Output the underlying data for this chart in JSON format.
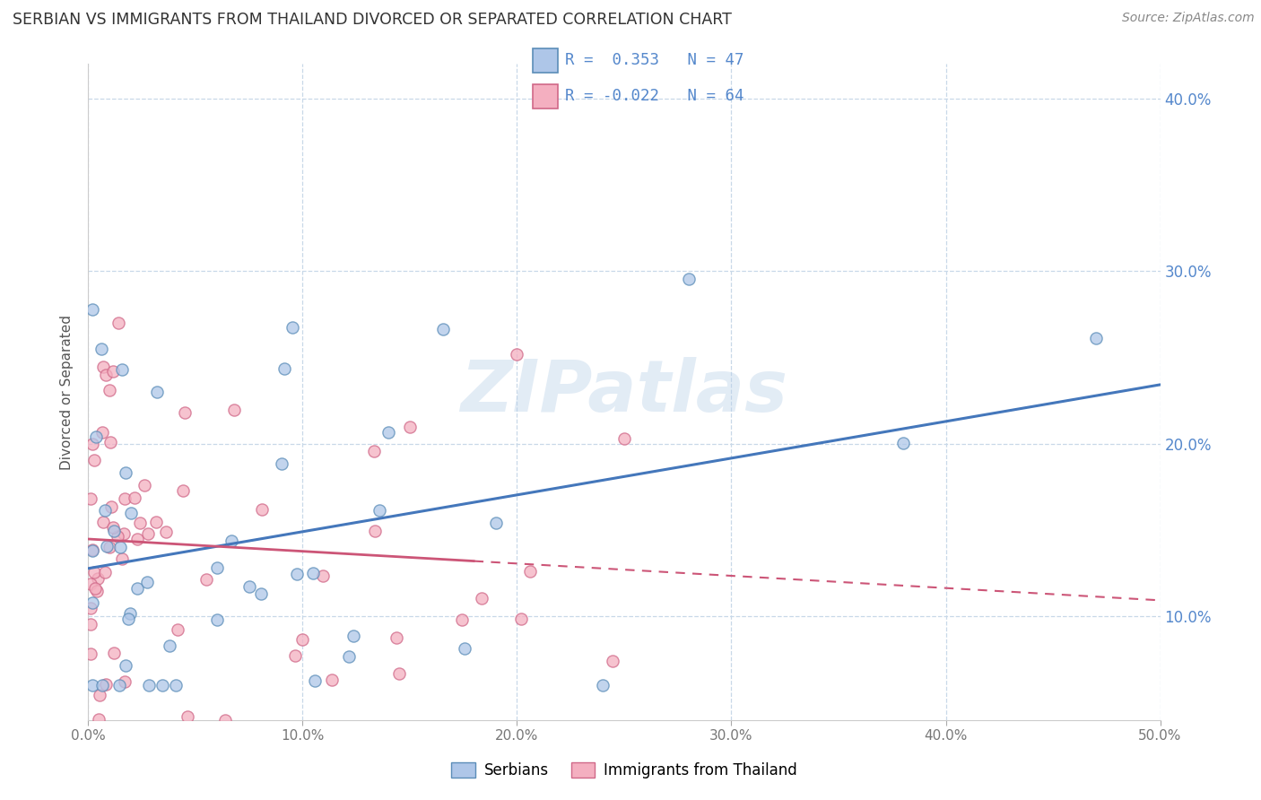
{
  "title": "SERBIAN VS IMMIGRANTS FROM THAILAND DIVORCED OR SEPARATED CORRELATION CHART",
  "source": "Source: ZipAtlas.com",
  "ylabel": "Divorced or Separated",
  "legend_label_1": "Serbians",
  "legend_label_2": "Immigrants from Thailand",
  "R1": 0.353,
  "N1": 47,
  "R2": -0.022,
  "N2": 64,
  "xlim": [
    0.0,
    0.5
  ],
  "ylim": [
    0.04,
    0.42
  ],
  "xticks": [
    0.0,
    0.1,
    0.2,
    0.3,
    0.4,
    0.5
  ],
  "yticks": [
    0.1,
    0.2,
    0.3,
    0.4
  ],
  "color_serbian_fill": "#aec6e8",
  "color_serbian_edge": "#5b8db8",
  "color_thai_fill": "#f4afc0",
  "color_thai_edge": "#d06888",
  "color_serbian_line": "#4477bb",
  "color_thai_line": "#cc5577",
  "background_color": "#ffffff",
  "watermark": "ZIPatlas",
  "watermark_color": "#b8d0e8",
  "grid_color": "#c8d8e8",
  "tick_color_y": "#5588cc",
  "tick_color_x": "#777777"
}
